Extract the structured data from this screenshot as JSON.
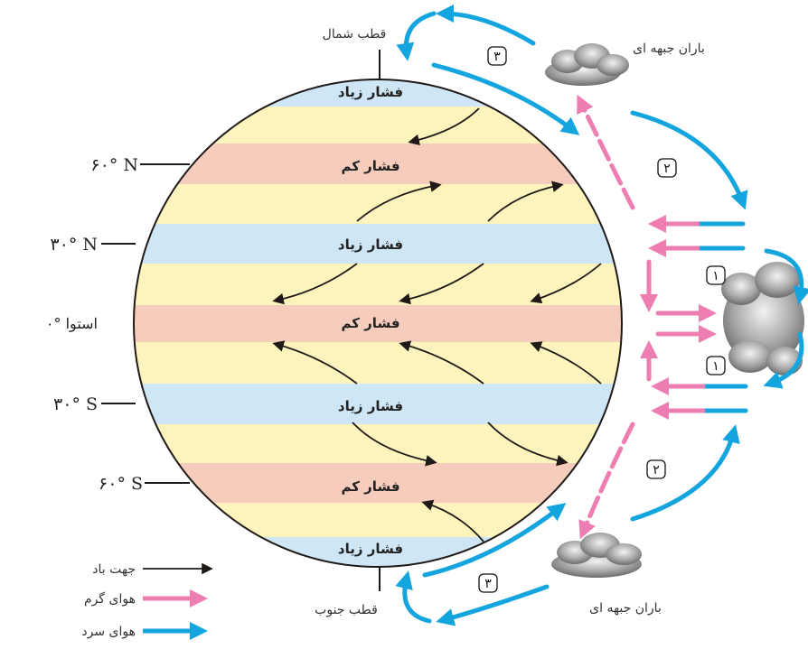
{
  "colors": {
    "high_pressure_band": "#cfe6f6",
    "low_pressure_band": "#f6cdbd",
    "neutral_band": "#fdf4bd",
    "warm_air": "#ee7eb1",
    "cold_air": "#14a4de",
    "wind_arrow": "#1f1a17"
  },
  "belts": [
    {
      "label": "فشار زیاد",
      "kind": "high"
    },
    {
      "label": "فشار کم",
      "kind": "low"
    },
    {
      "label": "فشار زیاد",
      "kind": "high"
    },
    {
      "label": "فشار کم",
      "kind": "low"
    },
    {
      "label": "فشار زیاد",
      "kind": "high"
    },
    {
      "label": "فشار کم",
      "kind": "low"
    },
    {
      "label": "فشار زیاد",
      "kind": "high"
    }
  ],
  "latitudes": {
    "n60": "۶۰° N",
    "n30": "۳۰° N",
    "equator": "۰° استوا",
    "s30": "۳۰° S",
    "s60": "۶۰° S"
  },
  "poles": {
    "north": "قطب شمال",
    "south": "قطب جنوب"
  },
  "rain": {
    "north": "باران جبهه ای",
    "south": "باران جبهه ای"
  },
  "cells": {
    "one": "۱",
    "two": "۲",
    "three": "۳"
  },
  "legend": {
    "wind": "جهت باد",
    "warm": "هوای گرم",
    "cold": "هوای سرد"
  }
}
